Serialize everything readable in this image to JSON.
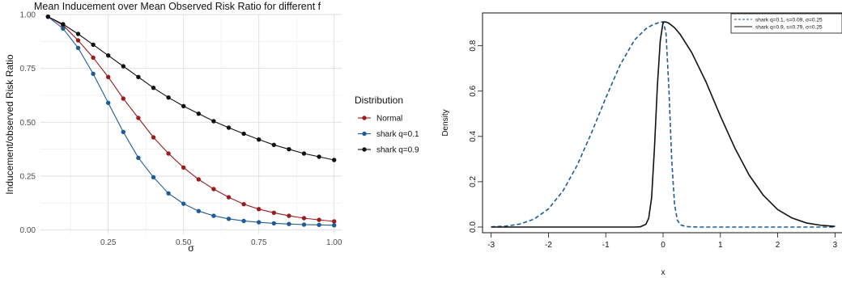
{
  "chart_data": [
    {
      "type": "line",
      "title": "Mean Inducement over Mean Observed Risk Ratio for different f",
      "xlabel": "σ",
      "ylabel": "Inducement/observed Risk Ratio",
      "xlim": [
        0.025,
        1.025
      ],
      "ylim": [
        -0.02,
        1.0
      ],
      "x_ticks": [
        "0.25",
        "0.50",
        "0.75",
        "1.00"
      ],
      "x_tick_values": [
        0.25,
        0.5,
        0.75,
        1.0
      ],
      "y_ticks": [
        "0.00",
        "0.25",
        "0.50",
        "0.75",
        "1.00"
      ],
      "y_tick_values": [
        0.0,
        0.25,
        0.5,
        0.75,
        1.0
      ],
      "grid": true,
      "legend_title": "Distribution",
      "legend_position": "right",
      "x": [
        0.05,
        0.1,
        0.15,
        0.2,
        0.25,
        0.3,
        0.35,
        0.4,
        0.45,
        0.5,
        0.55,
        0.6,
        0.65,
        0.7,
        0.75,
        0.8,
        0.85,
        0.9,
        0.95,
        1.0
      ],
      "series": [
        {
          "name": "Normal",
          "color": "#9b1b1e",
          "values": [
            0.99,
            0.95,
            0.88,
            0.8,
            0.71,
            0.61,
            0.52,
            0.43,
            0.355,
            0.29,
            0.235,
            0.19,
            0.152,
            0.12,
            0.097,
            0.08,
            0.066,
            0.055,
            0.047,
            0.04
          ]
        },
        {
          "name": "shark q=0.1",
          "color": "#1f5b94",
          "values": [
            0.99,
            0.935,
            0.845,
            0.725,
            0.59,
            0.455,
            0.335,
            0.245,
            0.17,
            0.122,
            0.088,
            0.066,
            0.052,
            0.042,
            0.036,
            0.031,
            0.028,
            0.025,
            0.024,
            0.022
          ]
        },
        {
          "name": "shark q=0.9",
          "color": "#111111",
          "values": [
            0.99,
            0.955,
            0.91,
            0.86,
            0.81,
            0.76,
            0.71,
            0.66,
            0.615,
            0.575,
            0.54,
            0.505,
            0.475,
            0.447,
            0.42,
            0.395,
            0.375,
            0.355,
            0.34,
            0.325
          ]
        }
      ]
    },
    {
      "type": "line",
      "title": "",
      "xlabel": "x",
      "ylabel": "Density",
      "xlim": [
        -3.15,
        3.15
      ],
      "ylim": [
        -0.025,
        0.945
      ],
      "x_ticks": [
        "-3",
        "-2",
        "-1",
        "0",
        "1",
        "2",
        "3"
      ],
      "x_tick_values": [
        -3,
        -2,
        -1,
        0,
        1,
        2,
        3
      ],
      "y_ticks": [
        "0.0",
        "0.2",
        "0.4",
        "0.6",
        "0.8"
      ],
      "y_tick_values": [
        0.0,
        0.2,
        0.4,
        0.6,
        0.8
      ],
      "grid": false,
      "legend_position": "top-right",
      "series": [
        {
          "name": "shark q=0.1, s=0.09, σ=0.25",
          "color": "#1f5b94",
          "dashed": true,
          "x": [
            -3.0,
            -2.75,
            -2.5,
            -2.25,
            -2.0,
            -1.75,
            -1.5,
            -1.25,
            -1.0,
            -0.75,
            -0.5,
            -0.3,
            -0.2,
            -0.1,
            -0.05,
            0.0,
            0.05,
            0.1,
            0.15,
            0.2,
            0.25,
            0.3,
            0.4,
            0.6,
            1.0,
            2.0,
            3.0
          ],
          "values": [
            0.001,
            0.004,
            0.013,
            0.035,
            0.08,
            0.158,
            0.272,
            0.415,
            0.57,
            0.715,
            0.825,
            0.875,
            0.89,
            0.9,
            0.905,
            0.905,
            0.86,
            0.62,
            0.3,
            0.1,
            0.03,
            0.01,
            0.002,
            0.0,
            0.0,
            0.0,
            0.0
          ]
        },
        {
          "name": "shark q=0.9, s=0.79, σ=0.25",
          "color": "#111111",
          "dashed": false,
          "x": [
            -3.0,
            -1.0,
            -0.5,
            -0.4,
            -0.3,
            -0.25,
            -0.2,
            -0.15,
            -0.1,
            -0.05,
            0.0,
            0.05,
            0.1,
            0.2,
            0.3,
            0.5,
            0.75,
            1.0,
            1.25,
            1.5,
            1.75,
            2.0,
            2.25,
            2.5,
            2.75,
            3.0
          ],
          "values": [
            0.0,
            0.0,
            0.0,
            0.001,
            0.012,
            0.04,
            0.13,
            0.35,
            0.62,
            0.82,
            0.905,
            0.905,
            0.9,
            0.88,
            0.85,
            0.77,
            0.64,
            0.49,
            0.35,
            0.23,
            0.14,
            0.077,
            0.04,
            0.018,
            0.008,
            0.003
          ]
        }
      ]
    }
  ]
}
